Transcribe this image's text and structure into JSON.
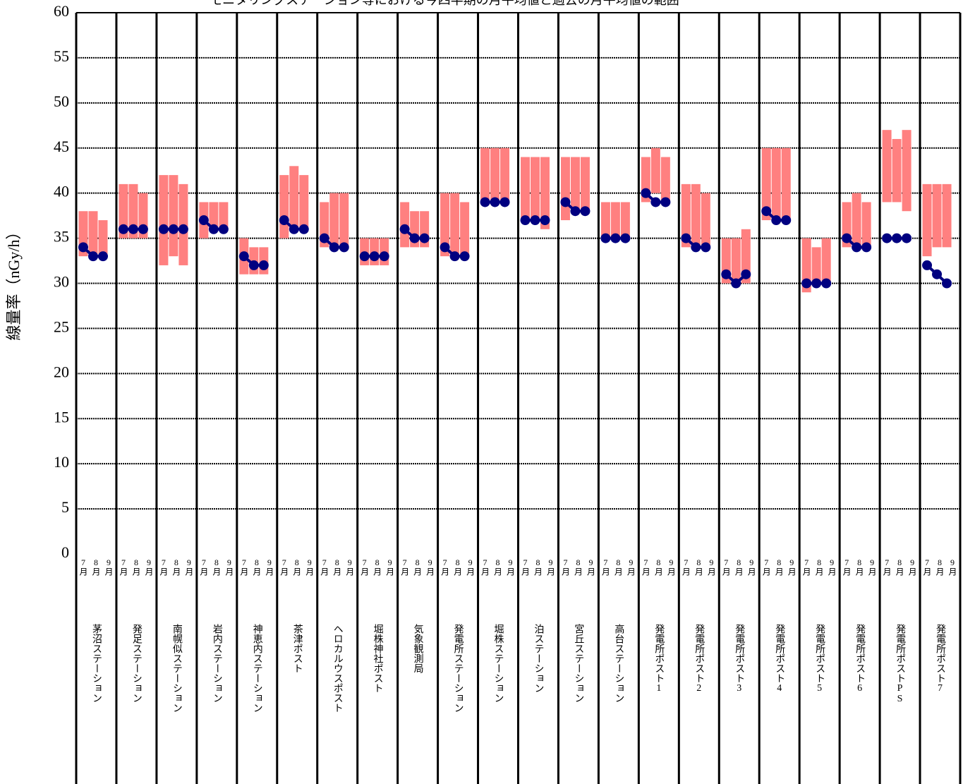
{
  "chart_data": {
    "type": "range-dot",
    "title": "モニタリングステーション等における今四半期の月平均値と過去の月平均値の範囲",
    "y_label": "線量率（nGy/h）",
    "categories": [
      "茅沼ステーション",
      "発足ステーション",
      "南幌似ステーション",
      "岩内ステーション",
      "神恵内ステーション",
      "茶津ポスト",
      "ヘロカルウスポスト",
      "堀株神社ポスト",
      "気象観測局",
      "発電所ステーション",
      "堀株ステーション",
      "泊ステーション",
      "宮丘ステーション",
      "高台ステーション",
      "発電所ポスト1",
      "発電所ポスト2",
      "発電所ポスト3",
      "発電所ポスト4",
      "発電所ポスト5",
      "発電所ポスト6",
      "発電所ポストPS",
      "発電所ポスト7"
    ],
    "months": [
      "7月",
      "8月",
      "9月"
    ],
    "range_min": [
      [
        33,
        33,
        33
      ],
      [
        35,
        35,
        35
      ],
      [
        32,
        33,
        32
      ],
      [
        35,
        36,
        36
      ],
      [
        31,
        31,
        31
      ],
      [
        35,
        36,
        36
      ],
      [
        34,
        34,
        34
      ],
      [
        32,
        32,
        32
      ],
      [
        34,
        34,
        34
      ],
      [
        33,
        33,
        33
      ],
      [
        39,
        39,
        39
      ],
      [
        37,
        37,
        36
      ],
      [
        37,
        38,
        38
      ],
      [
        35,
        35,
        35
      ],
      [
        39,
        40,
        39
      ],
      [
        34,
        34,
        34
      ],
      [
        30,
        30,
        30
      ],
      [
        37,
        37,
        37
      ],
      [
        29,
        30,
        30
      ],
      [
        34,
        34,
        34
      ],
      [
        39,
        39,
        38
      ],
      [
        33,
        34,
        34
      ]
    ],
    "range_max": [
      [
        38,
        38,
        37
      ],
      [
        41,
        41,
        40
      ],
      [
        42,
        42,
        41
      ],
      [
        39,
        39,
        39
      ],
      [
        35,
        34,
        34
      ],
      [
        42,
        43,
        42
      ],
      [
        39,
        40,
        40
      ],
      [
        35,
        35,
        35
      ],
      [
        39,
        38,
        38
      ],
      [
        40,
        40,
        39
      ],
      [
        45,
        45,
        45
      ],
      [
        44,
        44,
        44
      ],
      [
        44,
        44,
        44
      ],
      [
        39,
        39,
        39
      ],
      [
        44,
        45,
        44
      ],
      [
        41,
        41,
        40
      ],
      [
        35,
        35,
        36
      ],
      [
        45,
        45,
        45
      ],
      [
        35,
        34,
        35
      ],
      [
        39,
        40,
        39
      ],
      [
        47,
        46,
        47
      ],
      [
        41,
        41,
        41
      ]
    ],
    "values": [
      [
        34,
        33,
        33
      ],
      [
        36,
        36,
        36
      ],
      [
        36,
        36,
        36
      ],
      [
        37,
        36,
        36
      ],
      [
        33,
        32,
        32
      ],
      [
        37,
        36,
        36
      ],
      [
        35,
        34,
        34
      ],
      [
        33,
        33,
        33
      ],
      [
        36,
        35,
        35
      ],
      [
        34,
        33,
        33
      ],
      [
        39,
        39,
        39
      ],
      [
        37,
        37,
        37
      ],
      [
        39,
        38,
        38
      ],
      [
        35,
        35,
        35
      ],
      [
        40,
        39,
        39
      ],
      [
        35,
        34,
        34
      ],
      [
        31,
        30,
        31
      ],
      [
        38,
        37,
        37
      ],
      [
        30,
        30,
        30
      ],
      [
        35,
        34,
        34
      ],
      [
        35,
        35,
        35
      ],
      [
        32,
        31,
        30
      ]
    ],
    "range_color": "#ff8080",
    "value_color": "#000080",
    "ylim": [
      0,
      60
    ],
    "yticks": [
      0,
      5,
      10,
      15,
      20,
      25,
      30,
      35,
      40,
      45,
      50,
      55,
      60
    ],
    "grid": true
  }
}
